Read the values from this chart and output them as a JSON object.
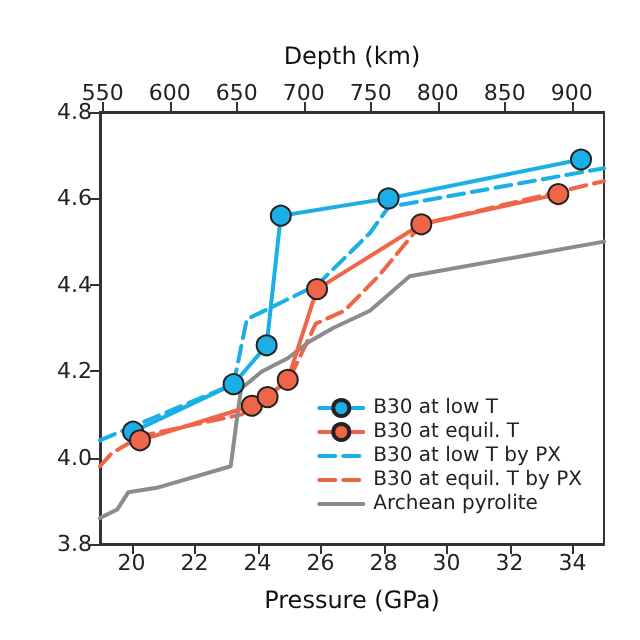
{
  "chart_data": {
    "type": "line",
    "xlabel": "Pressure (GPa)",
    "x2label": "Depth (km)",
    "xlim": [
      19,
      35
    ],
    "xticks": [
      20,
      22,
      24,
      26,
      28,
      30,
      32,
      34
    ],
    "x2lim": [
      548,
      924
    ],
    "x2ticks": [
      550,
      600,
      650,
      700,
      750,
      800,
      850,
      900
    ],
    "ylim": [
      3.8,
      4.8
    ],
    "yticks": [
      3.8,
      {
        "value": 4,
        "label": "4.0"
      },
      4.2,
      4.4,
      4.6,
      4.8
    ],
    "grid": false,
    "legend": "bottom right",
    "series": [
      {
        "name": "B30 at low T",
        "color": "#1ab0e6",
        "marker": "circle",
        "line_style": "solid",
        "x": [
          20.05,
          23.24,
          24.29,
          24.74,
          28.16,
          34.27
        ],
        "values": [
          4.06,
          4.17,
          4.26,
          4.56,
          4.6,
          4.69
        ]
      },
      {
        "name": "B30 at equil. T",
        "color": "#ee6548",
        "marker": "circle",
        "line_style": "solid",
        "x": [
          20.27,
          23.82,
          24.32,
          24.96,
          25.89,
          29.2,
          33.55
        ],
        "values": [
          4.04,
          4.12,
          4.14,
          4.18,
          4.39,
          4.54,
          4.61
        ]
      },
      {
        "name": "B30 at low T by PX",
        "color": "#1ab0e6",
        "marker": "none",
        "line_style": "dashed",
        "x": [
          19,
          23.24,
          23.66,
          25.9,
          27.57,
          28.16,
          35
        ],
        "values": [
          4.04,
          4.17,
          4.32,
          4.4,
          4.52,
          4.58,
          4.67
        ]
      },
      {
        "name": "B30 at equil. T by PX",
        "color": "#ee6548",
        "marker": "none",
        "line_style": "dashed",
        "x": [
          19,
          19.37,
          20.3,
          23.5,
          25.0,
          25.85,
          26.76,
          27.84,
          29.2,
          35
        ],
        "values": [
          3.98,
          4.01,
          4.05,
          4.1,
          4.18,
          4.31,
          4.34,
          4.42,
          4.54,
          4.64
        ]
      },
      {
        "name": "Archean pyrolite",
        "color": "#8c8c8c",
        "marker": "none",
        "line_style": "solid",
        "x": [
          19,
          19.55,
          19.9,
          20.8,
          23.15,
          23.33,
          23.48,
          24.15,
          24.96,
          25.68,
          26.4,
          27.57,
          28.83,
          35
        ],
        "values": [
          3.86,
          3.88,
          3.92,
          3.93,
          3.98,
          4.08,
          4.16,
          4.2,
          4.23,
          4.27,
          4.3,
          4.34,
          4.42,
          4.5
        ]
      }
    ]
  }
}
